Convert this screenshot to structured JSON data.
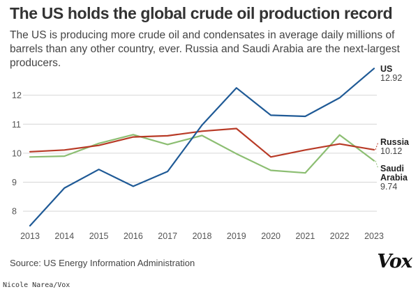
{
  "header": {
    "title": "The US holds the global crude oil production record",
    "subtitle": "The US is producing more crude oil and condensates in average daily millions of barrels than any other country, ever. Russia and Saudi Arabia are the next-largest producers."
  },
  "footer": {
    "source": "Source: US Energy Information Administration",
    "brand": "Vox",
    "credit": "Nicole Narea/Vox"
  },
  "chart_data": {
    "type": "line",
    "x": [
      2013,
      2014,
      2015,
      2016,
      2017,
      2018,
      2019,
      2020,
      2021,
      2022,
      2023
    ],
    "xlim": [
      2013,
      2023
    ],
    "ylim": [
      7.5,
      13
    ],
    "yticks": [
      8,
      9,
      10,
      11,
      12
    ],
    "grid": "horizontal",
    "legend": "end-labels",
    "series": [
      {
        "name": "US",
        "end_label_lines": [
          "US"
        ],
        "end_value": "12.92",
        "color": "#1f5a96",
        "values": [
          7.5,
          8.8,
          9.44,
          8.86,
          9.37,
          10.97,
          12.25,
          11.31,
          11.27,
          11.91,
          12.92
        ]
      },
      {
        "name": "Russia",
        "end_label_lines": [
          "Russia"
        ],
        "end_value": "10.12",
        "color": "#b83a26",
        "values": [
          10.05,
          10.11,
          10.27,
          10.56,
          10.6,
          10.76,
          10.85,
          9.87,
          10.11,
          10.32,
          10.12
        ]
      },
      {
        "name": "Saudi Arabia",
        "end_label_lines": [
          "Saudi",
          "Arabia"
        ],
        "end_value": "9.74",
        "color": "#8cbe72",
        "values": [
          9.87,
          9.9,
          10.34,
          10.64,
          10.3,
          10.61,
          9.98,
          9.41,
          9.32,
          10.63,
          9.74
        ]
      }
    ]
  }
}
